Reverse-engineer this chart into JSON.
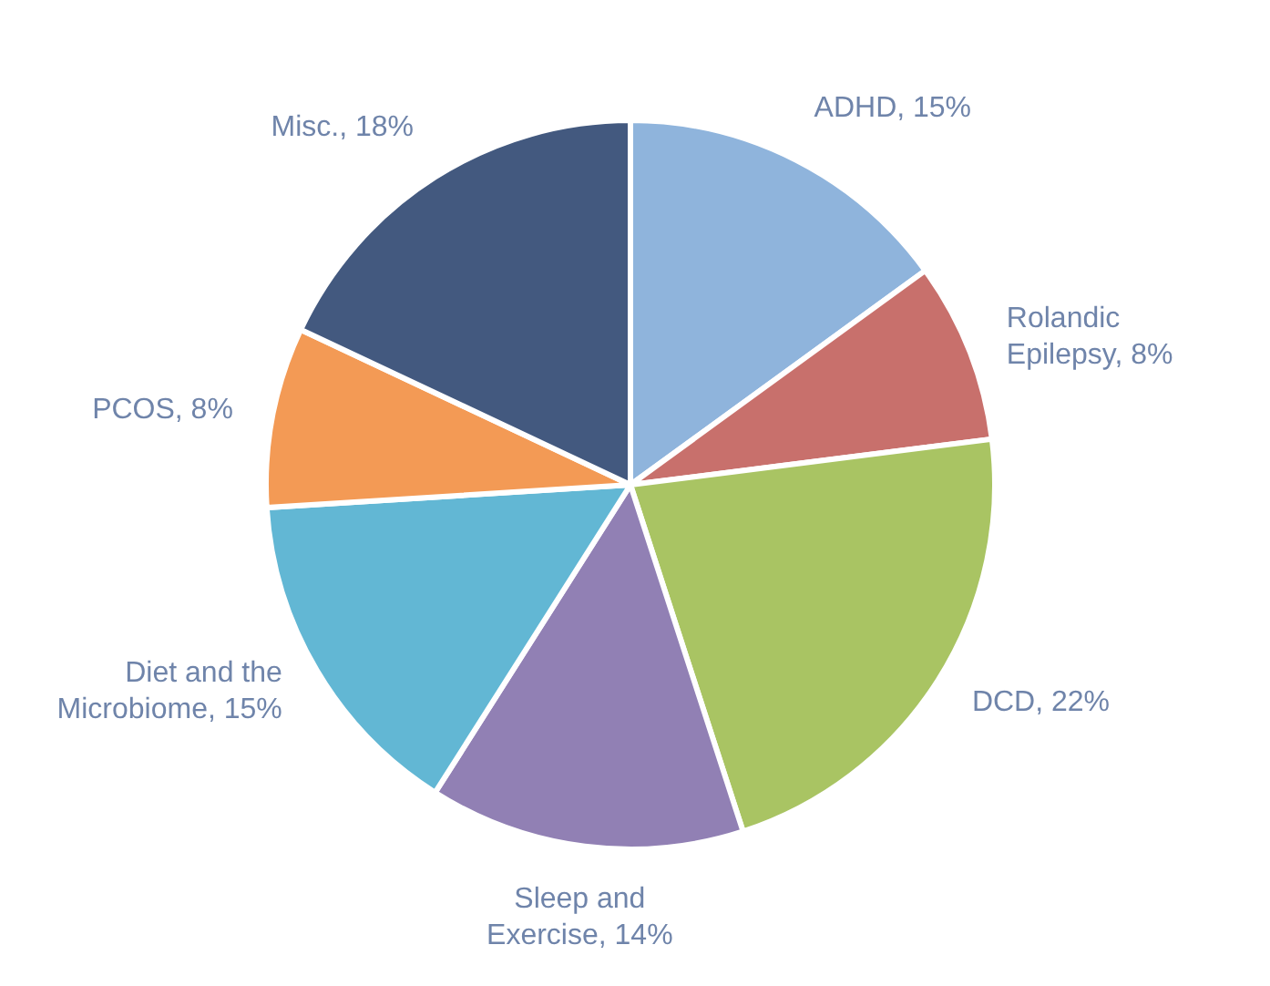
{
  "chart_data": {
    "type": "pie",
    "categories": [
      "ADHD",
      "Rolandic Epilepsy",
      "DCD",
      "Sleep and Exercise",
      "Diet and the Microbiome",
      "PCOS",
      "Misc."
    ],
    "values": [
      15,
      8,
      22,
      14,
      15,
      8,
      18
    ],
    "value_labels": [
      "15%",
      "8%",
      "22%",
      "14%",
      "15%",
      "8%",
      "18%"
    ],
    "colors": [
      "#8fb4dc",
      "#c8706c",
      "#a9c463",
      "#9180b4",
      "#62b7d4",
      "#f39a55",
      "#43597f"
    ]
  }
}
